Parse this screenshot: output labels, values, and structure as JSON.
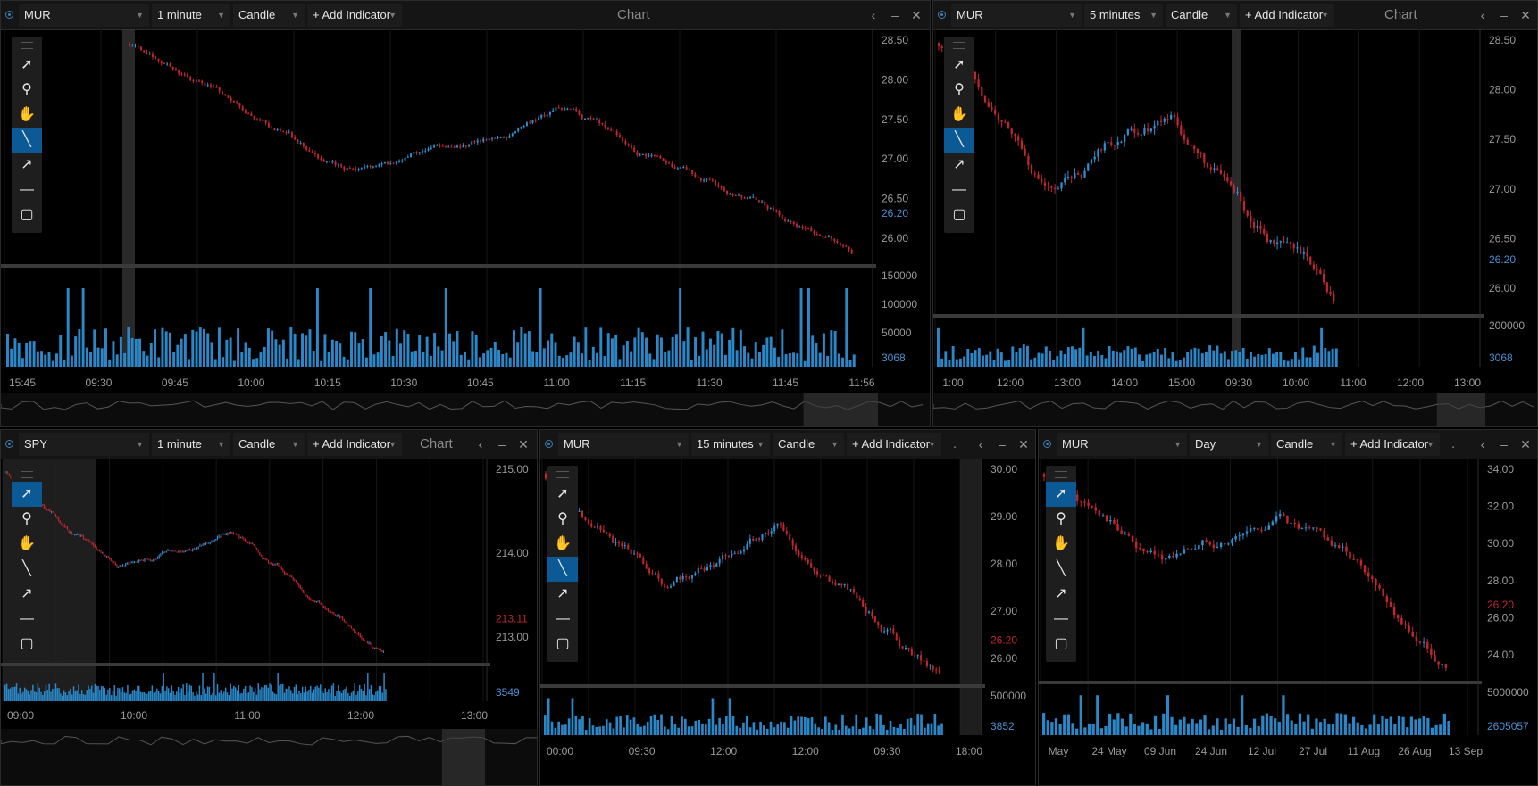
{
  "colors": {
    "up": "#2f8fd0",
    "down": "#c0262e",
    "accent": "#0b5a96",
    "volume": "#2a88c8",
    "price_label": "#4a90d0"
  },
  "panels": [
    {
      "symbol": "MUR",
      "interval": "1 minute",
      "chart_type": "Candle",
      "add_indicator": "+ Add Indicator",
      "title": "Chart",
      "price_ticks": [
        "28.50",
        "28.00",
        "27.50",
        "27.00",
        "26.50",
        "26.00"
      ],
      "price_label": "26.20",
      "volume_ticks": [
        "150000",
        "100000",
        "50000"
      ],
      "volume_label": "3068",
      "time_ticks": [
        "15:45",
        "09:30",
        "09:45",
        "10:00",
        "10:15",
        "10:30",
        "10:45",
        "11:00",
        "11:15",
        "11:30",
        "11:45",
        "11:56"
      ]
    },
    {
      "symbol": "MUR",
      "interval": "5 minutes",
      "chart_type": "Candle",
      "add_indicator": "+ Add Indicator",
      "title": "Chart",
      "price_ticks": [
        "28.50",
        "28.00",
        "27.50",
        "27.00",
        "26.50",
        "26.00"
      ],
      "price_label": "26.20",
      "volume_ticks": [
        "200000"
      ],
      "volume_label": "3068",
      "time_ticks": [
        "1:00",
        "12:00",
        "13:00",
        "14:00",
        "15:00",
        "09:30",
        "10:00",
        "11:00",
        "12:00",
        "13:00"
      ]
    },
    {
      "symbol": "SPY",
      "interval": "1 minute",
      "chart_type": "Candle",
      "add_indicator": "+ Add Indicator",
      "title": "Chart",
      "price_ticks": [
        "215.00",
        "214.00",
        "213.00"
      ],
      "price_label": "213.11",
      "volume_ticks": [],
      "volume_label": "3549",
      "time_ticks": [
        "09:00",
        "10:00",
        "11:00",
        "12:00",
        "13:00"
      ]
    },
    {
      "symbol": "MUR",
      "interval": "15 minutes",
      "chart_type": "Candle",
      "add_indicator": "+ Add Indicator",
      "title": ".",
      "price_ticks": [
        "30.00",
        "29.00",
        "28.00",
        "27.00",
        "26.00"
      ],
      "price_label": "26.20",
      "volume_ticks": [
        "500000"
      ],
      "volume_label": "3852",
      "time_ticks": [
        "00:00",
        "09:30",
        "12:00",
        "12:00",
        "09:30",
        "18:00"
      ]
    },
    {
      "symbol": "MUR",
      "interval": "Day",
      "chart_type": "Candle",
      "add_indicator": "+ Add Indicator",
      "title": ".",
      "price_ticks": [
        "34.00",
        "32.00",
        "30.00",
        "28.00",
        "26.00",
        "24.00"
      ],
      "price_label": "26.20",
      "volume_ticks": [
        "5000000"
      ],
      "volume_label": "2605057",
      "time_ticks": [
        "May",
        "24 May",
        "09 Jun",
        "24 Jun",
        "12 Jul",
        "27 Jul",
        "11 Aug",
        "26 Aug",
        "13 Sep"
      ]
    }
  ],
  "tools": [
    "select-arrow",
    "zoom",
    "pan-hand",
    "trend-line",
    "arrow-line",
    "horizontal-line",
    "rectangle"
  ]
}
